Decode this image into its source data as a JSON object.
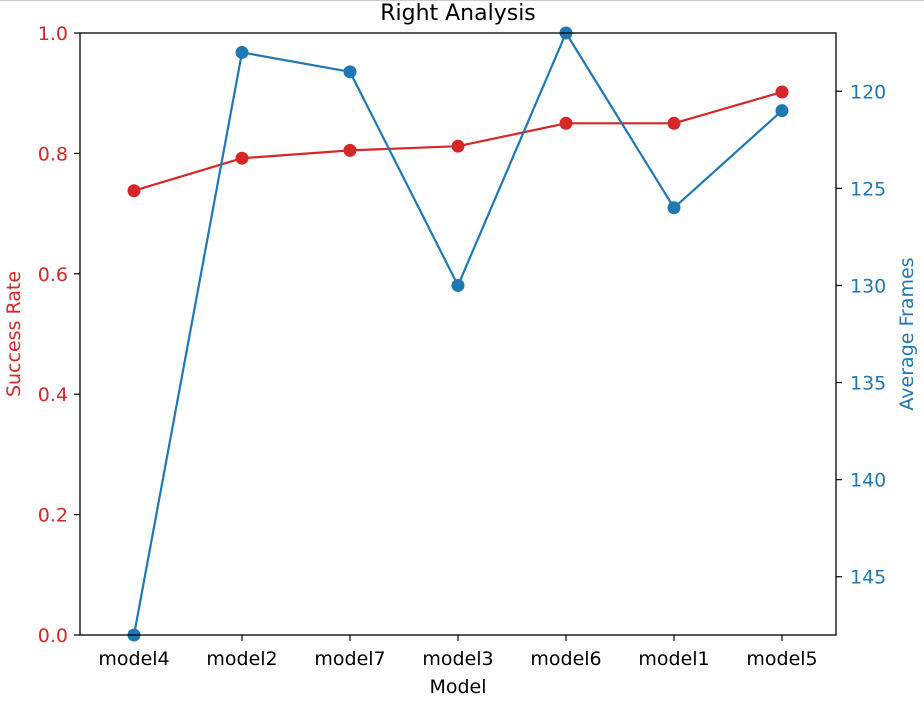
{
  "chart_data": {
    "type": "line",
    "title": "Right Analysis",
    "xlabel": "Model",
    "categories": [
      "model4",
      "model2",
      "model7",
      "model3",
      "model6",
      "model1",
      "model5"
    ],
    "series": [
      {
        "name": "Success Rate",
        "axis": "left",
        "color": "#d62728",
        "values": [
          0.738,
          0.792,
          0.805,
          0.812,
          0.85,
          0.85,
          0.902
        ]
      },
      {
        "name": "Average Frames",
        "axis": "right",
        "color": "#1f77b4",
        "values": [
          148,
          118,
          119,
          130,
          117,
          126,
          121
        ]
      }
    ],
    "y_left": {
      "label": "Success Rate",
      "lim": [
        0.0,
        1.0
      ],
      "ticks": [
        "0.0",
        "0.2",
        "0.4",
        "0.6",
        "0.8",
        "1.0"
      ],
      "color": "#d62728"
    },
    "y_right": {
      "label": "Average Frames",
      "lim": [
        148,
        117
      ],
      "inverted": true,
      "ticks": [
        "120",
        "125",
        "130",
        "135",
        "140",
        "145"
      ],
      "color": "#1f77b4"
    },
    "grid": false,
    "legend": "none"
  }
}
